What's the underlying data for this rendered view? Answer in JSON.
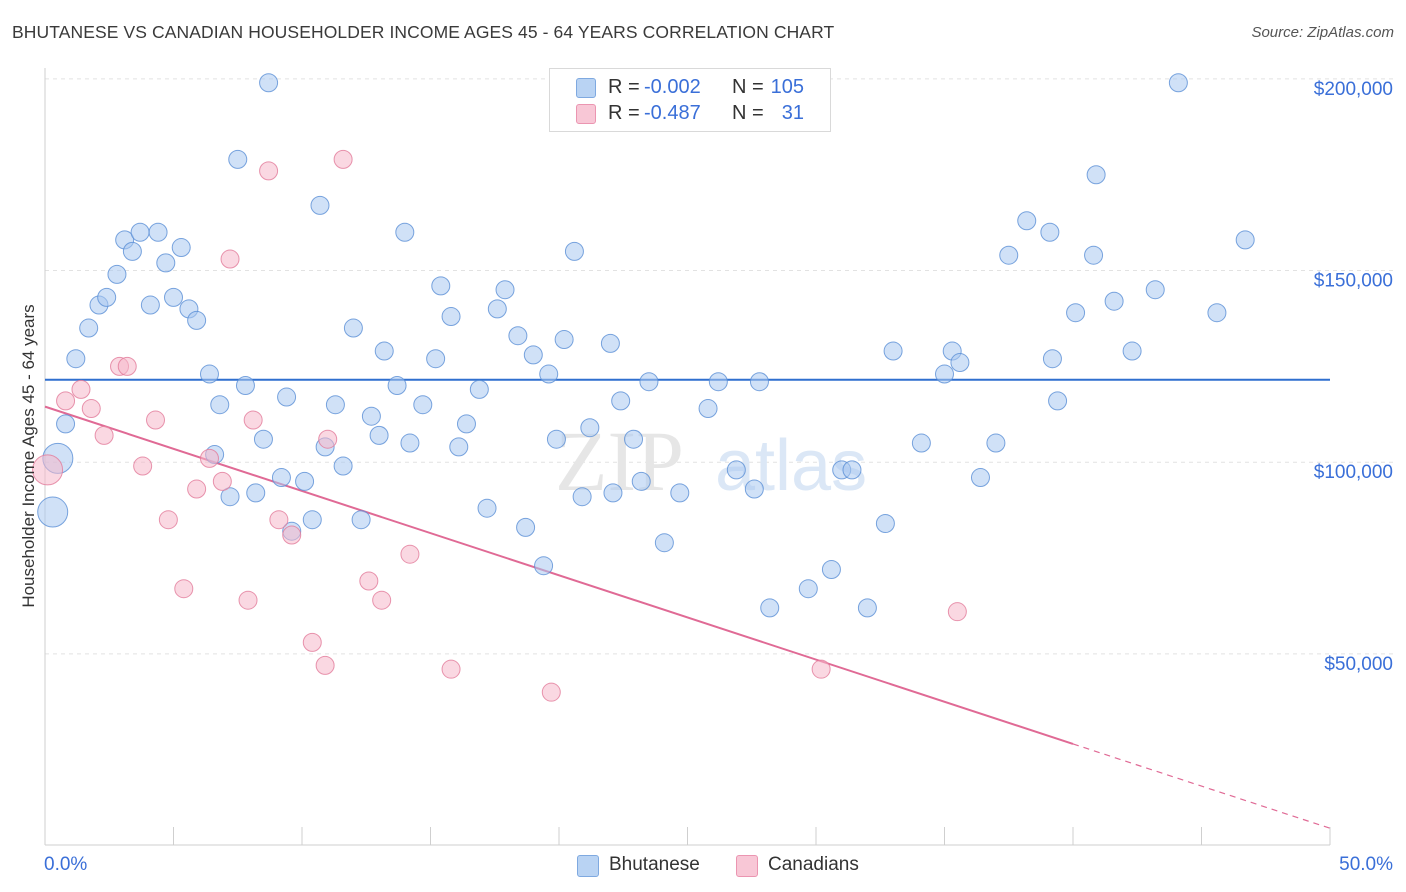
{
  "title": "BHUTANESE VS CANADIAN HOUSEHOLDER INCOME AGES 45 - 64 YEARS CORRELATION CHART",
  "source": "Source: ZipAtlas.com",
  "watermark": {
    "zip": "ZIP",
    "atlas": "atlas"
  },
  "legend": {
    "r_label": "R =",
    "n_label": "N =",
    "rows": [
      {
        "r": "-0.002",
        "n": "105",
        "color": "#a9c8f0"
      },
      {
        "r": "-0.487",
        "n": "31",
        "color": "#f5b8cb"
      }
    ]
  },
  "bottom_legend": [
    "Bhutanese",
    "Canadians"
  ],
  "chart_data": {
    "type": "scatter",
    "title": "BHUTANESE VS CANADIAN HOUSEHOLDER INCOME AGES 45 - 64 YEARS CORRELATION CHART",
    "xlabel": "",
    "ylabel": "Householder Income Ages 45 - 64 years",
    "xlim": [
      0,
      50
    ],
    "ylim": [
      0,
      205000
    ],
    "x_tick_labels": [
      "0.0%",
      "50.0%"
    ],
    "y_ticks": [
      50000,
      100000,
      150000,
      200000
    ],
    "y_tick_labels": [
      "$50,000",
      "$100,000",
      "$150,000",
      "$200,000"
    ],
    "grid": true,
    "series": [
      {
        "name": "Bhutanese",
        "color": "#a9c8f0",
        "stroke": "#5a8fd6",
        "trend": {
          "x": [
            0,
            50
          ],
          "y": [
            121500,
            121500
          ],
          "color": "#2f6fcf"
        },
        "points": [
          [
            0.3,
            87000,
            "l"
          ],
          [
            0.5,
            101000,
            "l"
          ],
          [
            0.8,
            110000
          ],
          [
            1.2,
            127000
          ],
          [
            1.7,
            135000
          ],
          [
            2.1,
            141000
          ],
          [
            2.4,
            143000
          ],
          [
            2.8,
            149000
          ],
          [
            3.1,
            158000
          ],
          [
            3.4,
            155000
          ],
          [
            3.7,
            160000
          ],
          [
            4.1,
            141000
          ],
          [
            4.4,
            160000
          ],
          [
            4.7,
            152000
          ],
          [
            5.0,
            143000
          ],
          [
            5.3,
            156000
          ],
          [
            5.6,
            140000
          ],
          [
            5.9,
            137000
          ],
          [
            6.4,
            123000
          ],
          [
            6.6,
            102000
          ],
          [
            6.8,
            115000
          ],
          [
            7.2,
            91000
          ],
          [
            7.5,
            179000
          ],
          [
            7.8,
            120000
          ],
          [
            8.2,
            92000
          ],
          [
            8.5,
            106000
          ],
          [
            8.7,
            199000
          ],
          [
            9.2,
            96000
          ],
          [
            9.4,
            117000
          ],
          [
            9.6,
            82000
          ],
          [
            10.1,
            95000
          ],
          [
            10.4,
            85000
          ],
          [
            10.7,
            167000
          ],
          [
            10.9,
            104000
          ],
          [
            11.3,
            115000
          ],
          [
            11.6,
            99000
          ],
          [
            12.0,
            135000
          ],
          [
            12.3,
            85000
          ],
          [
            12.7,
            112000
          ],
          [
            13.0,
            107000
          ],
          [
            13.2,
            129000
          ],
          [
            13.7,
            120000
          ],
          [
            14.0,
            160000
          ],
          [
            14.2,
            105000
          ],
          [
            14.7,
            115000
          ],
          [
            15.2,
            127000
          ],
          [
            15.4,
            146000
          ],
          [
            15.8,
            138000
          ],
          [
            16.1,
            104000
          ],
          [
            16.4,
            110000
          ],
          [
            16.9,
            119000
          ],
          [
            17.2,
            88000
          ],
          [
            17.6,
            140000
          ],
          [
            17.9,
            145000
          ],
          [
            18.4,
            133000
          ],
          [
            18.7,
            83000
          ],
          [
            19.0,
            128000
          ],
          [
            19.4,
            73000
          ],
          [
            19.6,
            123000
          ],
          [
            19.9,
            106000
          ],
          [
            20.2,
            132000
          ],
          [
            20.6,
            155000
          ],
          [
            20.9,
            91000
          ],
          [
            21.2,
            109000
          ],
          [
            22.0,
            131000
          ],
          [
            22.1,
            92000
          ],
          [
            22.4,
            116000
          ],
          [
            22.9,
            106000
          ],
          [
            23.2,
            95000
          ],
          [
            23.5,
            121000
          ],
          [
            24.1,
            79000
          ],
          [
            24.7,
            92000
          ],
          [
            25.8,
            114000
          ],
          [
            26.2,
            121000
          ],
          [
            26.9,
            98000
          ],
          [
            27.6,
            93000
          ],
          [
            27.8,
            121000
          ],
          [
            28.2,
            62000
          ],
          [
            29.7,
            67000
          ],
          [
            30.6,
            72000
          ],
          [
            31.0,
            98000
          ],
          [
            31.4,
            98000
          ],
          [
            32.0,
            62000
          ],
          [
            32.7,
            84000
          ],
          [
            33.0,
            129000
          ],
          [
            34.1,
            105000
          ],
          [
            35.0,
            123000
          ],
          [
            35.3,
            129000
          ],
          [
            35.6,
            126000
          ],
          [
            36.4,
            96000
          ],
          [
            37.0,
            105000
          ],
          [
            37.5,
            154000
          ],
          [
            38.2,
            163000
          ],
          [
            39.1,
            160000
          ],
          [
            39.2,
            127000
          ],
          [
            39.4,
            116000
          ],
          [
            40.1,
            139000
          ],
          [
            40.8,
            154000
          ],
          [
            40.9,
            175000
          ],
          [
            41.6,
            142000
          ],
          [
            42.3,
            129000
          ],
          [
            43.2,
            145000
          ],
          [
            44.1,
            199000
          ],
          [
            45.6,
            139000
          ],
          [
            46.7,
            158000
          ]
        ]
      },
      {
        "name": "Canadians",
        "color": "#f5b8cb",
        "stroke": "#e27a9a",
        "trend": {
          "x": [
            0,
            40
          ],
          "y": [
            114500,
            26500
          ],
          "dash_to": [
            50,
            4500
          ],
          "color": "#e06a95"
        },
        "points": [
          [
            0.1,
            98000,
            "l"
          ],
          [
            0.8,
            116000
          ],
          [
            1.4,
            119000
          ],
          [
            1.8,
            114000
          ],
          [
            2.3,
            107000
          ],
          [
            2.9,
            125000
          ],
          [
            3.2,
            125000
          ],
          [
            3.8,
            99000
          ],
          [
            4.3,
            111000
          ],
          [
            4.8,
            85000
          ],
          [
            5.4,
            67000
          ],
          [
            5.9,
            93000
          ],
          [
            6.4,
            101000
          ],
          [
            6.9,
            95000
          ],
          [
            7.2,
            153000
          ],
          [
            7.9,
            64000
          ],
          [
            8.1,
            111000
          ],
          [
            8.7,
            176000
          ],
          [
            9.1,
            85000
          ],
          [
            9.6,
            81000
          ],
          [
            10.4,
            53000
          ],
          [
            10.9,
            47000
          ],
          [
            11.0,
            106000
          ],
          [
            11.6,
            179000
          ],
          [
            12.6,
            69000
          ],
          [
            13.1,
            64000
          ],
          [
            14.2,
            76000
          ],
          [
            15.8,
            46000
          ],
          [
            19.7,
            40000
          ],
          [
            30.2,
            46000
          ],
          [
            35.5,
            61000
          ]
        ]
      }
    ]
  }
}
